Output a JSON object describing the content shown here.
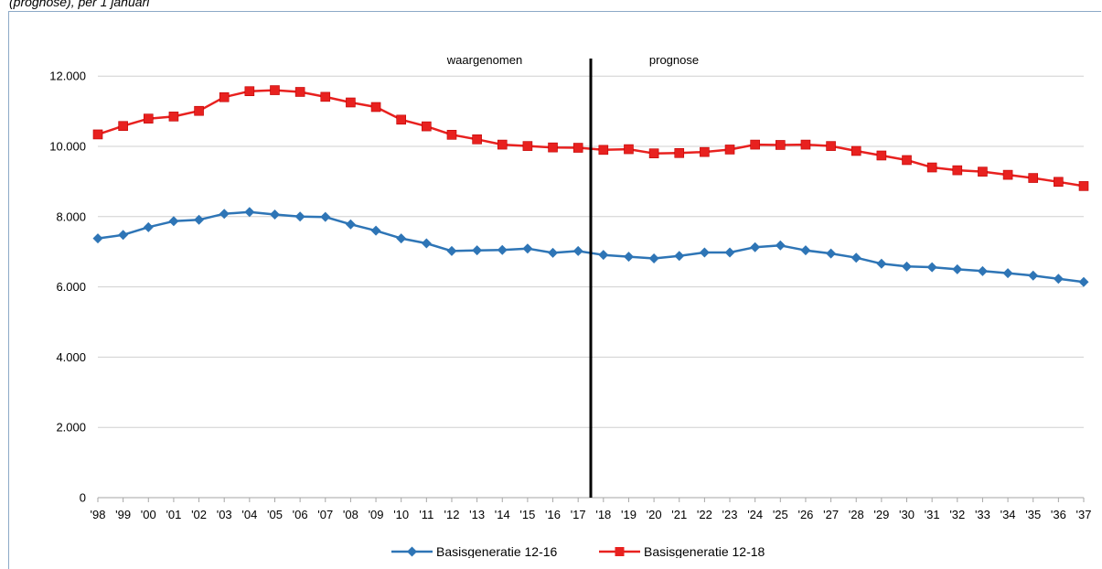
{
  "caption": "(prognose), per 1 januari",
  "chart_data": {
    "type": "line",
    "title": "",
    "xlabel": "",
    "ylabel": "",
    "categories": [
      "'98",
      "'99",
      "'00",
      "'01",
      "'02",
      "'03",
      "'04",
      "'05",
      "'06",
      "'07",
      "'08",
      "'09",
      "'10",
      "'11",
      "'12",
      "'13",
      "'14",
      "'15",
      "'16",
      "'17",
      "'18",
      "'19",
      "'20",
      "'21",
      "'22",
      "'23",
      "'24",
      "'25",
      "'26",
      "'27",
      "'28",
      "'29",
      "'30",
      "'31",
      "'32",
      "'33",
      "'34",
      "'35",
      "'36",
      "'37"
    ],
    "ylim": [
      0,
      12500
    ],
    "yticks": [
      0,
      2000,
      4000,
      6000,
      8000,
      10000,
      12000
    ],
    "ytick_labels": [
      "0",
      "2.000",
      "4.000",
      "6.000",
      "8.000",
      "10.000",
      "12.000"
    ],
    "grid": true,
    "legend_position": "bottom",
    "divider_after_index": 19,
    "annotations": {
      "left": "waargenomen",
      "right": "prognose"
    },
    "series": [
      {
        "name": "Basisgeneratie 12-16",
        "color": "#2e75b6",
        "marker": "diamond",
        "values": [
          7380,
          7480,
          7700,
          7870,
          7910,
          8080,
          8130,
          8060,
          8000,
          7990,
          7780,
          7600,
          7380,
          7240,
          7020,
          7040,
          7050,
          7090,
          6970,
          7020,
          6910,
          6860,
          6810,
          6880,
          6980,
          6980,
          7130,
          7180,
          7040,
          6950,
          6830,
          6660,
          6580,
          6560,
          6500,
          6450,
          6390,
          6320,
          6230,
          6140
        ]
      },
      {
        "name": "Basisgeneratie 12-18",
        "color": "#e8211f",
        "marker": "square",
        "values": [
          10340,
          10580,
          10790,
          10850,
          11010,
          11400,
          11570,
          11600,
          11550,
          11410,
          11250,
          11120,
          10760,
          10570,
          10330,
          10200,
          10050,
          10010,
          9970,
          9960,
          9900,
          9920,
          9800,
          9810,
          9840,
          9910,
          10050,
          10040,
          10050,
          10010,
          9870,
          9740,
          9610,
          9400,
          9320,
          9280,
          9190,
          9100,
          8990,
          8870
        ]
      }
    ]
  }
}
